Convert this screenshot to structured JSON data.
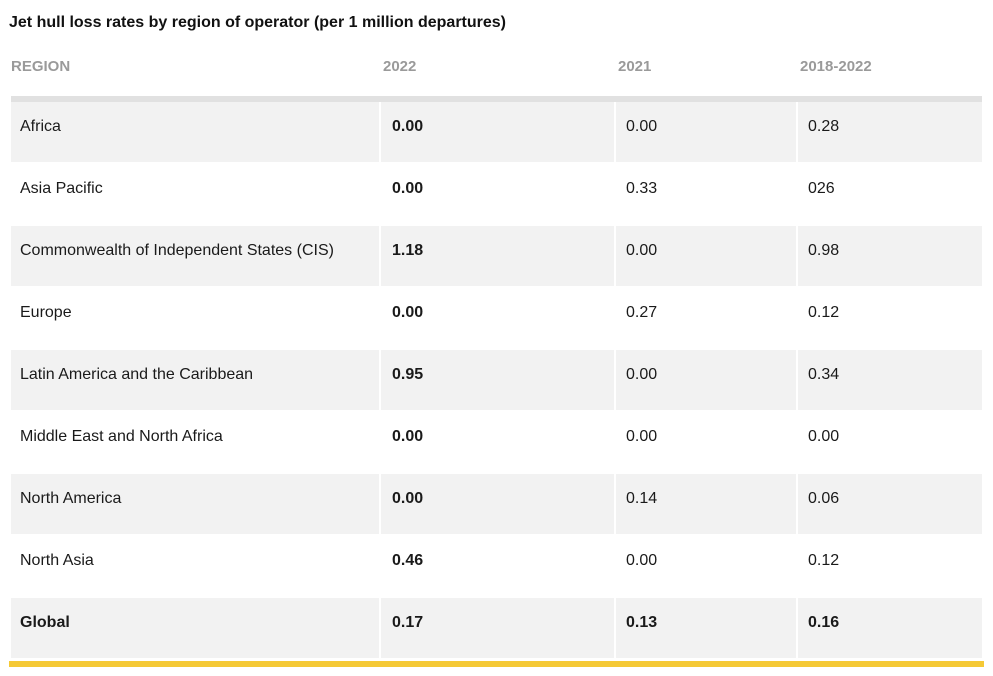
{
  "title": "Jet hull loss rates by region of operator (per 1 million departures)",
  "accent_color": "#f5c935",
  "chart_data": {
    "type": "table",
    "title": "Jet hull loss rates by region of operator (per 1 million departures)",
    "columns": [
      "REGION",
      "2022",
      "2021",
      "2018-2022"
    ],
    "rows": [
      {
        "region": "Africa",
        "v2022": "0.00",
        "v2021": "0.00",
        "v2018_2022": "0.28"
      },
      {
        "region": "Asia Pacific",
        "v2022": "0.00",
        "v2021": "0.33",
        "v2018_2022": "026"
      },
      {
        "region": "Commonwealth of Independent States (CIS)",
        "v2022": "1.18",
        "v2021": "0.00",
        "v2018_2022": "0.98"
      },
      {
        "region": "Europe",
        "v2022": "0.00",
        "v2021": "0.27",
        "v2018_2022": "0.12"
      },
      {
        "region": "Latin America and the Caribbean",
        "v2022": "0.95",
        "v2021": "0.00",
        "v2018_2022": "0.34"
      },
      {
        "region": "Middle East and North Africa",
        "v2022": "0.00",
        "v2021": "0.00",
        "v2018_2022": "0.00"
      },
      {
        "region": "North America",
        "v2022": "0.00",
        "v2021": "0.14",
        "v2018_2022": "0.06"
      },
      {
        "region": "North Asia",
        "v2022": "0.46",
        "v2021": "0.00",
        "v2018_2022": "0.12"
      },
      {
        "region": "Global",
        "v2022": "0.17",
        "v2021": "0.13",
        "v2018_2022": "0.16"
      }
    ]
  }
}
